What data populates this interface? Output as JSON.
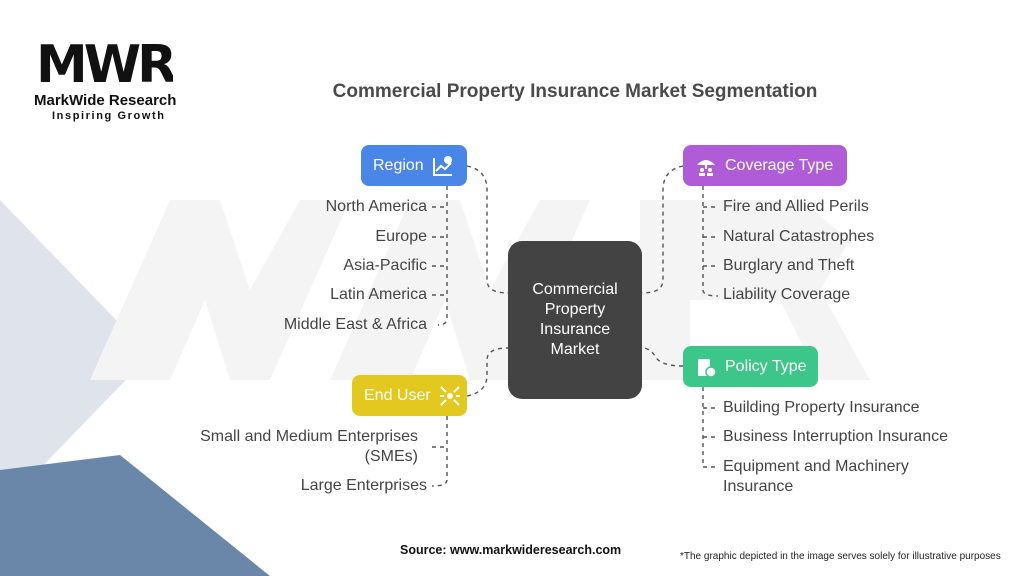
{
  "logo": {
    "mark": "MWR",
    "name": "MarkWide Research",
    "tagline": "Inspiring Growth"
  },
  "title": "Commercial Property Insurance Market Segmentation",
  "center": "Commercial Property Insurance Market",
  "segments": {
    "region": {
      "label": "Region",
      "icon": "chart-question-icon",
      "color": "#4a86e8",
      "items": [
        "North America",
        "Europe",
        "Asia-Pacific",
        "Latin America",
        "Middle East & Africa"
      ]
    },
    "coverage": {
      "label": "Coverage Type",
      "icon": "umbrella-people-icon",
      "color": "#b05bd8",
      "items": [
        "Fire and Allied Perils",
        "Natural Catastrophes",
        "Burglary and Theft",
        "Liability Coverage"
      ]
    },
    "end_user": {
      "label": "End User",
      "icon": "network-icon",
      "color": "#e2c81f",
      "items": [
        "Small and Medium Enterprises (SMEs)",
        "Large Enterprises"
      ]
    },
    "policy": {
      "label": "Policy Type",
      "icon": "clipboard-check-icon",
      "color": "#3cc68a",
      "items": [
        "Building Property Insurance",
        "Business Interruption Insurance",
        "Equipment and Machinery Insurance"
      ]
    }
  },
  "source": "Source: www.markwideresearch.com",
  "footnote": "*The graphic depicted in the image serves solely for illustrative purposes"
}
